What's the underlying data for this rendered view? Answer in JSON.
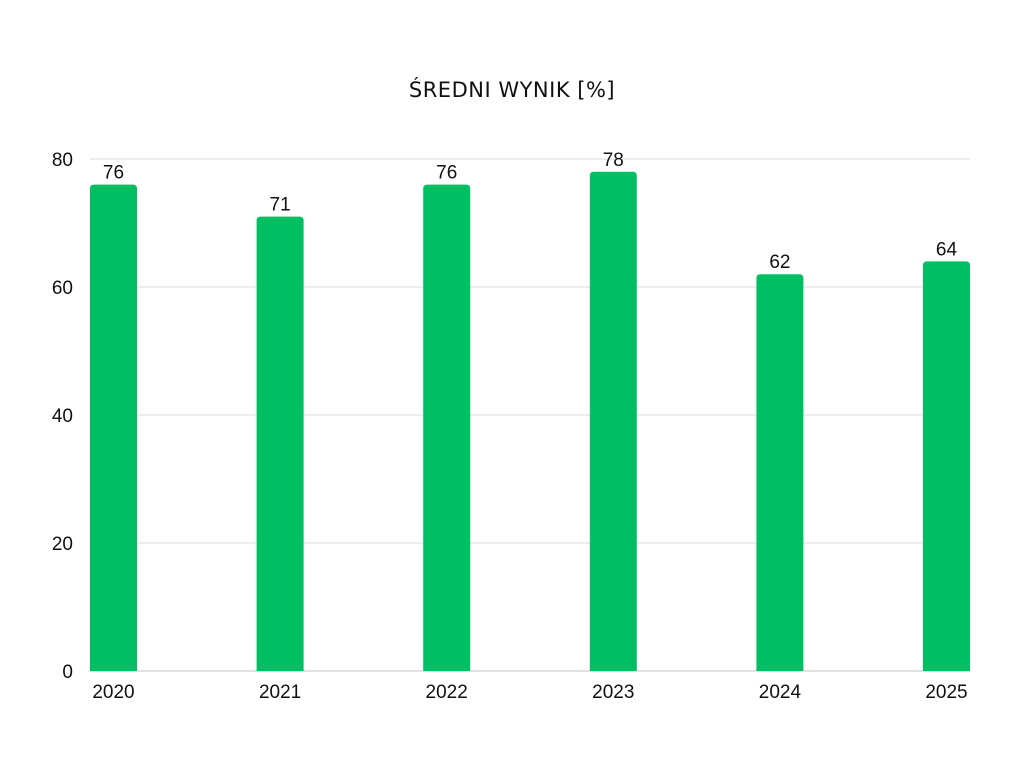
{
  "chart_data": {
    "type": "bar",
    "title": "ŚREDNI WYNIK [%]",
    "xlabel": "",
    "ylabel": "",
    "categories": [
      "2020",
      "2021",
      "2022",
      "2023",
      "2024",
      "2025"
    ],
    "values": [
      76,
      71,
      76,
      78,
      62,
      64
    ],
    "ylim": [
      0,
      80
    ],
    "yticks": [
      0,
      20,
      40,
      60,
      80
    ],
    "grid": true,
    "legend": "none",
    "bar_color": "#00BF63",
    "grid_color": "#D9D9D9"
  }
}
